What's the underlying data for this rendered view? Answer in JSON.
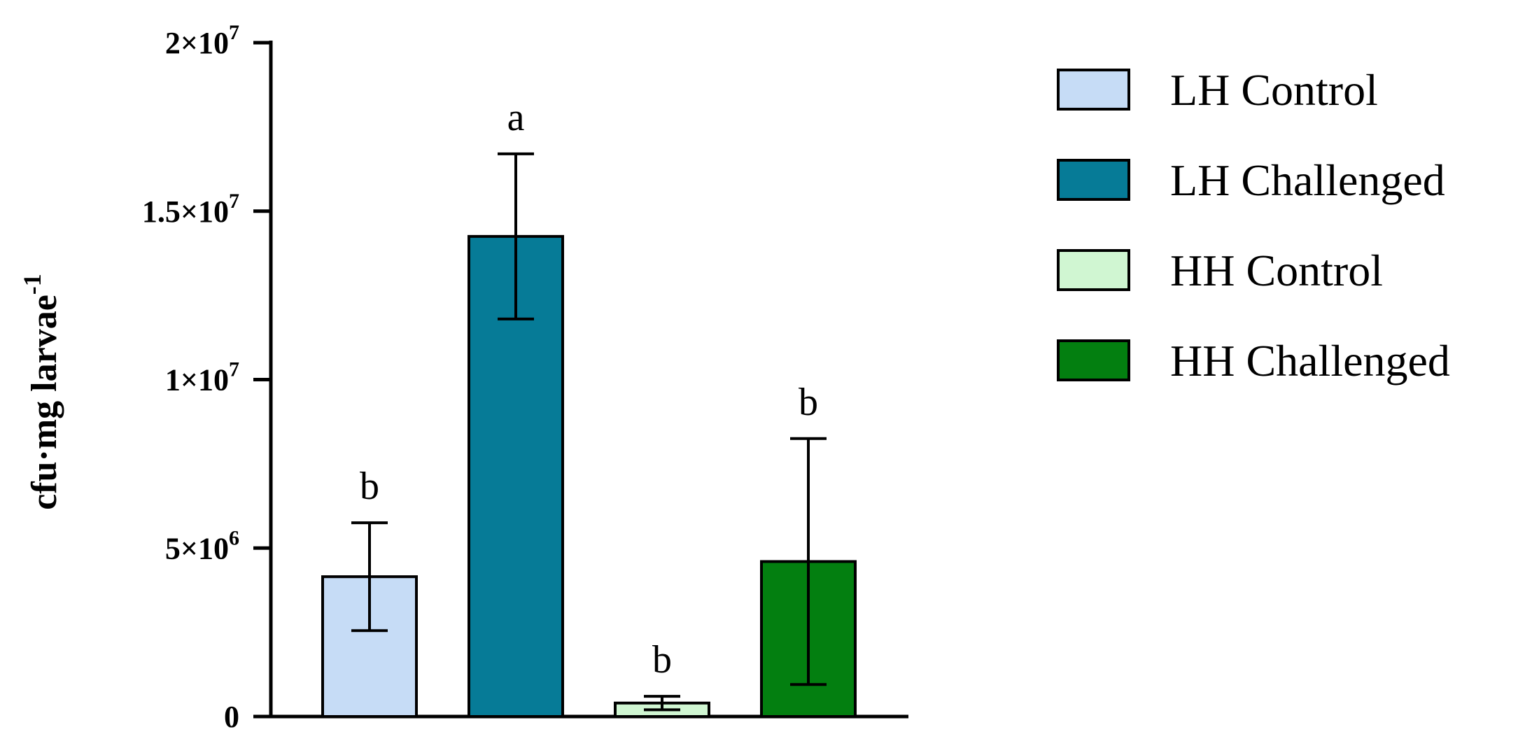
{
  "chart_data": {
    "type": "bar",
    "title": "",
    "xlabel": "",
    "ylabel": "cfu·mg larvae",
    "ylabel_superscript": "-1",
    "ylim": [
      0,
      20000000
    ],
    "yticks": [
      {
        "value": 0,
        "label": "0"
      },
      {
        "value": 5000000,
        "label": "5×10",
        "exp": "6"
      },
      {
        "value": 10000000,
        "label": "1×10",
        "exp": "7"
      },
      {
        "value": 15000000,
        "label": "1.5×10",
        "exp": "7"
      },
      {
        "value": 20000000,
        "label": "2×10",
        "exp": "7"
      }
    ],
    "grid": false,
    "legend": "right",
    "categories": [
      "LH Control",
      "LH Challenged",
      "HH Control",
      "HH Challenged"
    ],
    "values": [
      4150000,
      14250000,
      400000,
      4600000
    ],
    "errors": [
      1600000,
      2450000,
      200000,
      3650000
    ],
    "significance": [
      "b",
      "a",
      "b",
      "b"
    ],
    "colors": [
      "#c6dcf6",
      "#067b97",
      "#d0f6d2",
      "#037f10"
    ]
  }
}
